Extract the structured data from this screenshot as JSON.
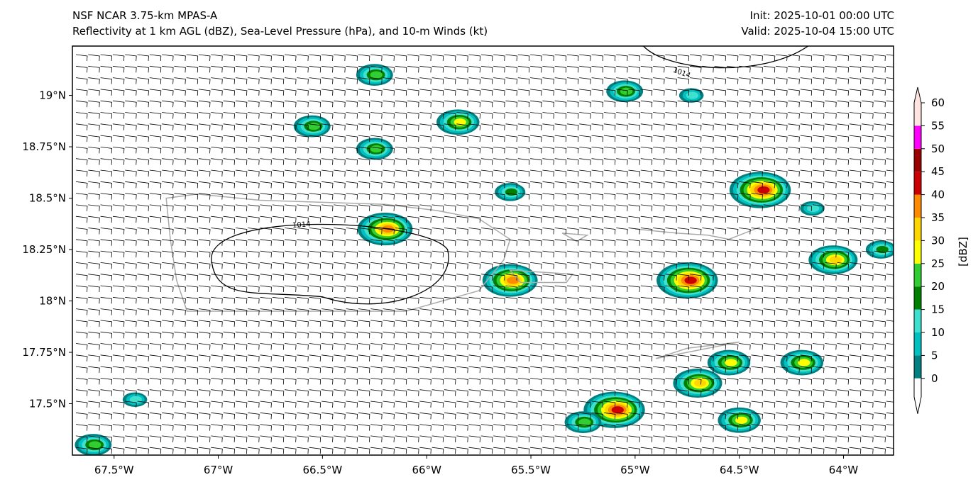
{
  "header": {
    "title_line1": "NSF NCAR 3.75-km MPAS-A",
    "title_line2": "Reflectivity at 1 km AGL (dBZ), Sea-Level Pressure (hPa), and 10-m Winds (kt)",
    "init": "Init: 2025-10-01 00:00 UTC",
    "valid": "Valid: 2025-10-04 15:00 UTC"
  },
  "map": {
    "lon_range": [
      -67.7,
      -63.76
    ],
    "lat_range": [
      17.25,
      19.24
    ],
    "x_ticks": [
      {
        "value": -67.5,
        "label": "67.5°W"
      },
      {
        "value": -67,
        "label": "67°W"
      },
      {
        "value": -66.5,
        "label": "66.5°W"
      },
      {
        "value": -66,
        "label": "66°W"
      },
      {
        "value": -65.5,
        "label": "65.5°W"
      },
      {
        "value": -65,
        "label": "65°W"
      },
      {
        "value": -64.5,
        "label": "64.5°W"
      },
      {
        "value": -64,
        "label": "64°W"
      }
    ],
    "y_ticks": [
      {
        "value": 19,
        "label": "19°N"
      },
      {
        "value": 18.75,
        "label": "18.75°N"
      },
      {
        "value": 18.5,
        "label": "18.5°N"
      },
      {
        "value": 18.25,
        "label": "18.25°N"
      },
      {
        "value": 18,
        "label": "18°N"
      },
      {
        "value": 17.75,
        "label": "17.75°N"
      },
      {
        "value": 17.5,
        "label": "17.5°N"
      }
    ],
    "contour_label": "1014",
    "cells": [
      {
        "lon": -66.25,
        "lat": 19.1,
        "dbz": 20
      },
      {
        "lon": -65.05,
        "lat": 19.02,
        "dbz": 20
      },
      {
        "lon": -64.73,
        "lat": 19.0,
        "dbz": 10
      },
      {
        "lon": -66.55,
        "lat": 18.85,
        "dbz": 20
      },
      {
        "lon": -65.85,
        "lat": 18.87,
        "dbz": 25
      },
      {
        "lon": -66.25,
        "lat": 18.74,
        "dbz": 20
      },
      {
        "lon": -65.6,
        "lat": 18.53,
        "dbz": 15
      },
      {
        "lon": -64.4,
        "lat": 18.54,
        "dbz": 40
      },
      {
        "lon": -66.2,
        "lat": 18.35,
        "dbz": 35
      },
      {
        "lon": -64.05,
        "lat": 18.2,
        "dbz": 30
      },
      {
        "lon": -65.6,
        "lat": 18.1,
        "dbz": 35
      },
      {
        "lon": -64.75,
        "lat": 18.1,
        "dbz": 40
      },
      {
        "lon": -64.55,
        "lat": 17.7,
        "dbz": 25
      },
      {
        "lon": -64.2,
        "lat": 17.7,
        "dbz": 25
      },
      {
        "lon": -64.7,
        "lat": 17.6,
        "dbz": 30
      },
      {
        "lon": -65.1,
        "lat": 17.47,
        "dbz": 40
      },
      {
        "lon": -65.25,
        "lat": 17.41,
        "dbz": 20
      },
      {
        "lon": -64.5,
        "lat": 17.42,
        "dbz": 25
      },
      {
        "lon": -63.82,
        "lat": 18.25,
        "dbz": 15
      },
      {
        "lon": -67.6,
        "lat": 17.3,
        "dbz": 20
      },
      {
        "lon": -67.4,
        "lat": 17.52,
        "dbz": 10
      },
      {
        "lon": -64.15,
        "lat": 18.45,
        "dbz": 10
      }
    ]
  },
  "colorbar": {
    "label": "[dBZ]",
    "levels": [
      {
        "value": 0,
        "label": "0",
        "color": "#008080"
      },
      {
        "value": 5,
        "label": "5",
        "color": "#00c0c0"
      },
      {
        "value": 10,
        "label": "10",
        "color": "#40e0d0"
      },
      {
        "value": 15,
        "label": "15",
        "color": "#008000"
      },
      {
        "value": 20,
        "label": "20",
        "color": "#32cd32"
      },
      {
        "value": 25,
        "label": "25",
        "color": "#ffff00"
      },
      {
        "value": 30,
        "label": "30",
        "color": "#ffd700"
      },
      {
        "value": 35,
        "label": "35",
        "color": "#ff8c00"
      },
      {
        "value": 40,
        "label": "40",
        "color": "#cc0000"
      },
      {
        "value": 45,
        "label": "45",
        "color": "#990000"
      },
      {
        "value": 50,
        "label": "50",
        "color": "#ff00ff"
      },
      {
        "value": 55,
        "label": "55",
        "color": "#ffe4e1"
      },
      {
        "value": 60,
        "label": "60",
        "color": "#ffe4e1"
      }
    ]
  }
}
